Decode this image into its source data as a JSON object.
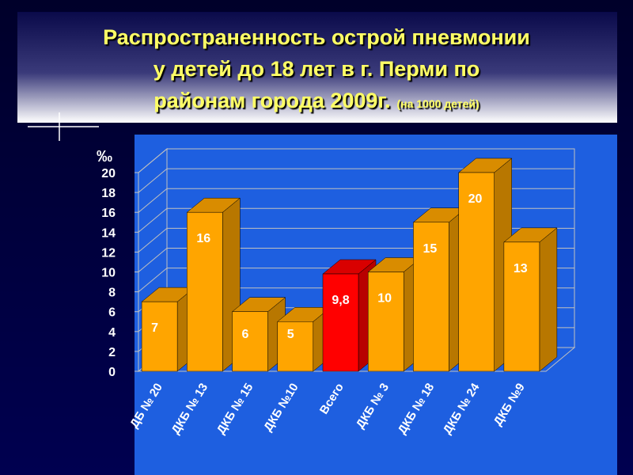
{
  "title_lines": [
    "Распространенность острой пневмонии",
    "у детей до 18 лет в г. Перми по",
    "районам города 2009г."
  ],
  "note": "(на 1000 детей)",
  "chart_data": {
    "type": "bar",
    "y_unit": "‰",
    "categories": [
      "ДБ № 20",
      "ДКБ № 13",
      "ДКБ № 15",
      "ДКБ №10",
      "Всего",
      "ДКБ № 3",
      "ДКБ № 18",
      "ДКБ № 24",
      "ДКБ №9"
    ],
    "values": [
      7,
      16,
      6,
      5,
      9.8,
      10,
      15,
      20,
      13
    ],
    "value_labels": [
      "7",
      "16",
      "6",
      "5",
      "9,8",
      "10",
      "15",
      "20",
      "13"
    ],
    "colors": [
      "#ffa500",
      "#ffa500",
      "#ffa500",
      "#ffa500",
      "#ff0000",
      "#ffa500",
      "#ffa500",
      "#ffa500",
      "#ffa500"
    ],
    "ylim": [
      0,
      20
    ],
    "yticks": [
      0,
      2,
      4,
      6,
      8,
      10,
      12,
      14,
      16,
      18,
      20
    ],
    "grid": true
  }
}
